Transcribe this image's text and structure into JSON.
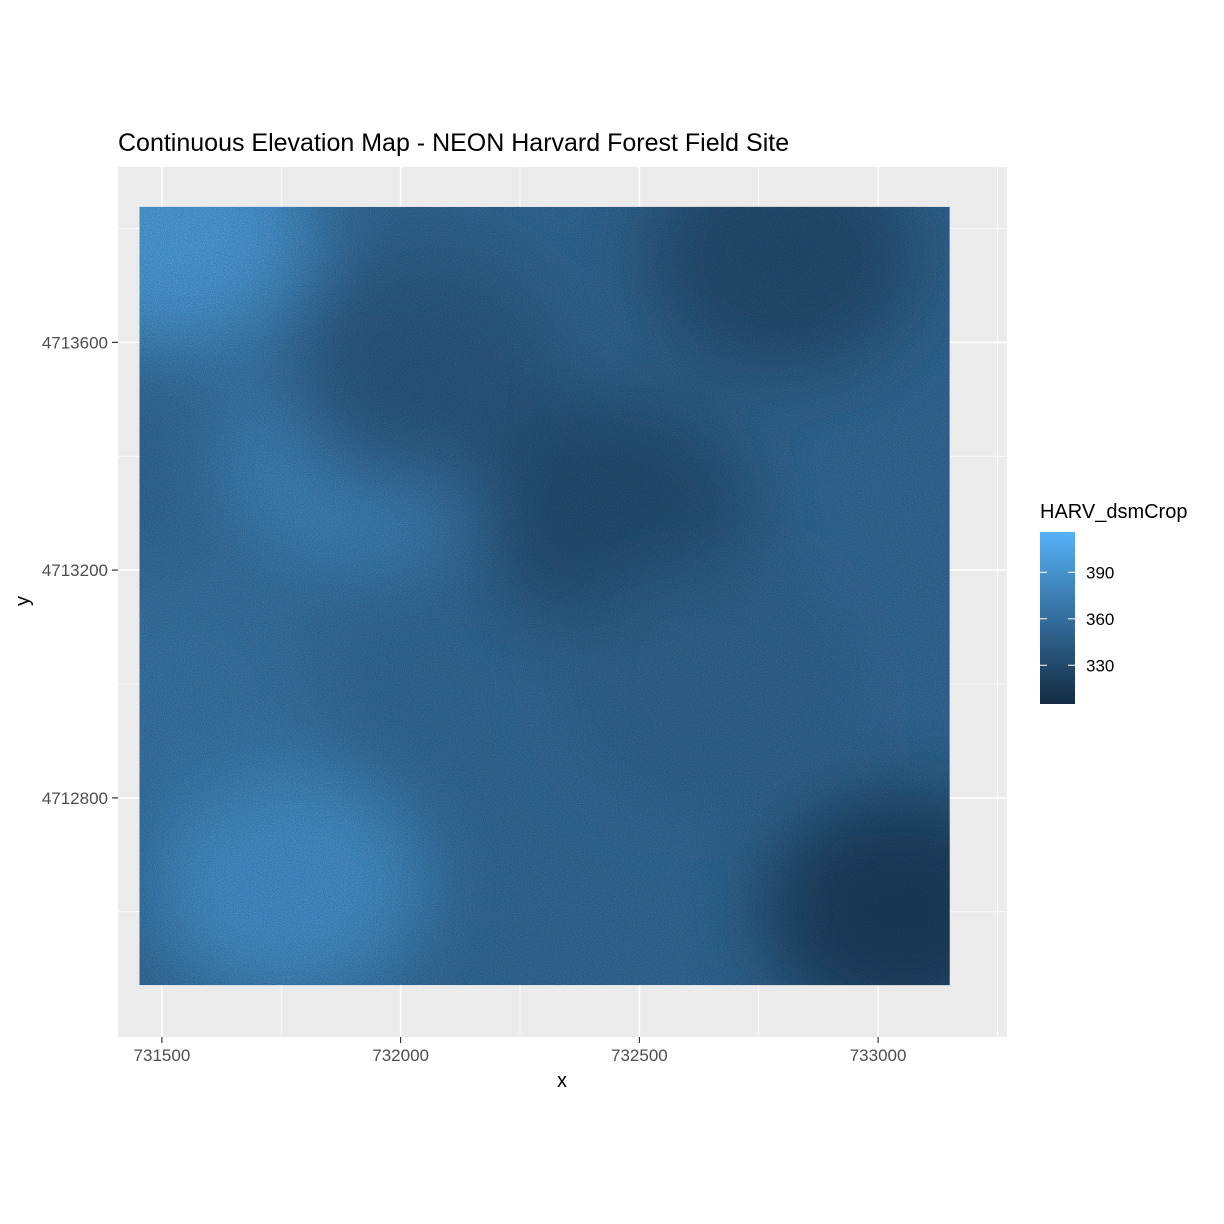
{
  "chart_data": {
    "type": "heatmap",
    "title": "Continuous Elevation Map - NEON Harvard Forest Field Site",
    "xlabel": "x",
    "ylabel": "y",
    "xlim": [
      731408,
      733270
    ],
    "ylim": [
      4712380,
      4713908
    ],
    "raster_extent": {
      "x": [
        731453,
        733150
      ],
      "y": [
        4712471,
        4713838
      ]
    },
    "x_ticks": [
      731500,
      732000,
      732500,
      733000
    ],
    "x_tick_labels": [
      "731500",
      "732000",
      "732500",
      "733000"
    ],
    "y_ticks": [
      4712800,
      4713200,
      4713600
    ],
    "y_tick_labels": [
      "4712800",
      "4713200",
      "4713600"
    ],
    "grid": true,
    "panel_background": "#ebebeb",
    "legend": {
      "title": "HARV_dsmCrop",
      "placement": "right",
      "range": [
        305,
        416
      ],
      "breaks": [
        390,
        360,
        330
      ],
      "break_labels": [
        "390",
        "360",
        "330"
      ],
      "low_color": "#132b43",
      "high_color": "#56b1f7"
    },
    "elevation_features": [
      {
        "x": 731760,
        "y": 4712650,
        "value": 400
      },
      {
        "x": 731520,
        "y": 4713800,
        "value": 410
      },
      {
        "x": 731900,
        "y": 4713400,
        "value": 390
      },
      {
        "x": 732050,
        "y": 4713550,
        "value": 350
      },
      {
        "x": 732450,
        "y": 4713300,
        "value": 340
      },
      {
        "x": 732800,
        "y": 4713750,
        "value": 338
      },
      {
        "x": 733050,
        "y": 4712600,
        "value": 325
      },
      {
        "x": 732650,
        "y": 4713000,
        "value": 360
      },
      {
        "x": 731550,
        "y": 4713000,
        "value": 375
      }
    ]
  }
}
